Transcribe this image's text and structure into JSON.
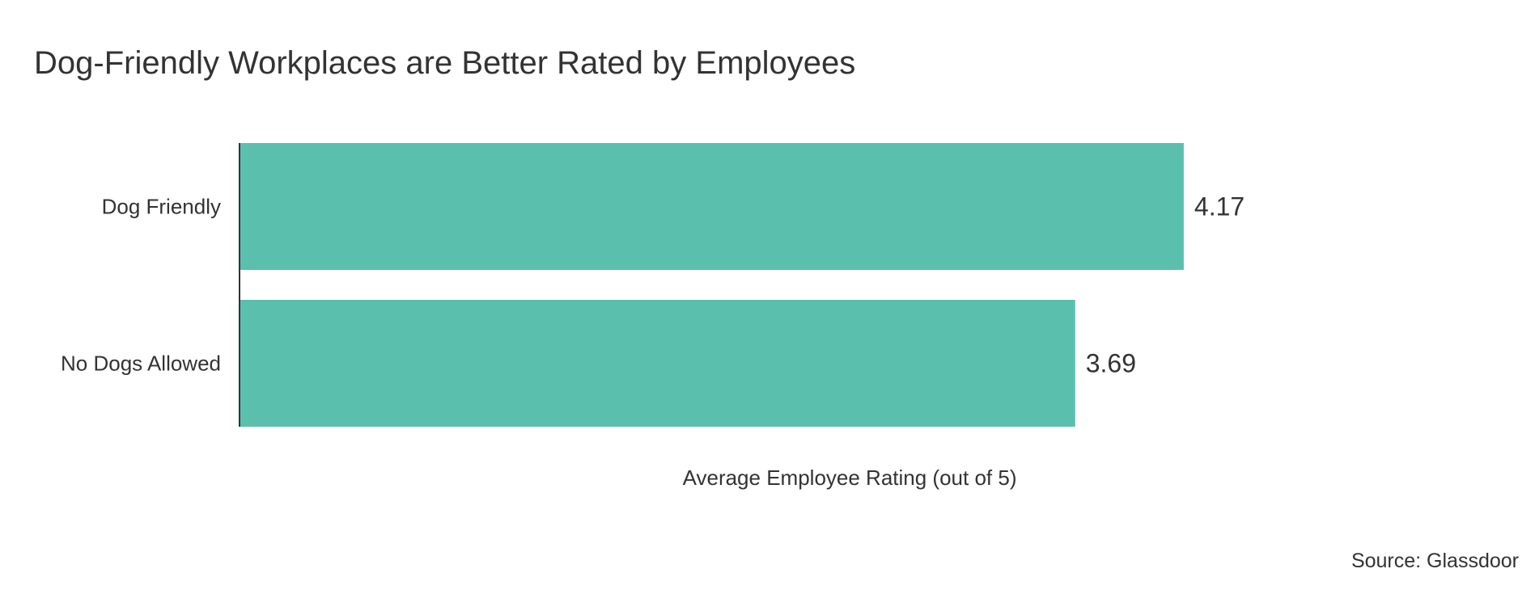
{
  "chart_data": {
    "type": "bar",
    "orientation": "horizontal",
    "title": "Dog-Friendly Workplaces are Better Rated by Employees",
    "categories": [
      "Dog Friendly",
      "No Dogs Allowed"
    ],
    "values": [
      4.17,
      3.69
    ],
    "value_labels": [
      "4.17",
      "3.69"
    ],
    "xlabel": "Average Employee Rating (out of 5)",
    "ylabel": "",
    "xlim": [
      0,
      5
    ],
    "grid": false,
    "legend": "none",
    "bar_color": "#5bbfae",
    "source": "Source: Glassdoor"
  }
}
